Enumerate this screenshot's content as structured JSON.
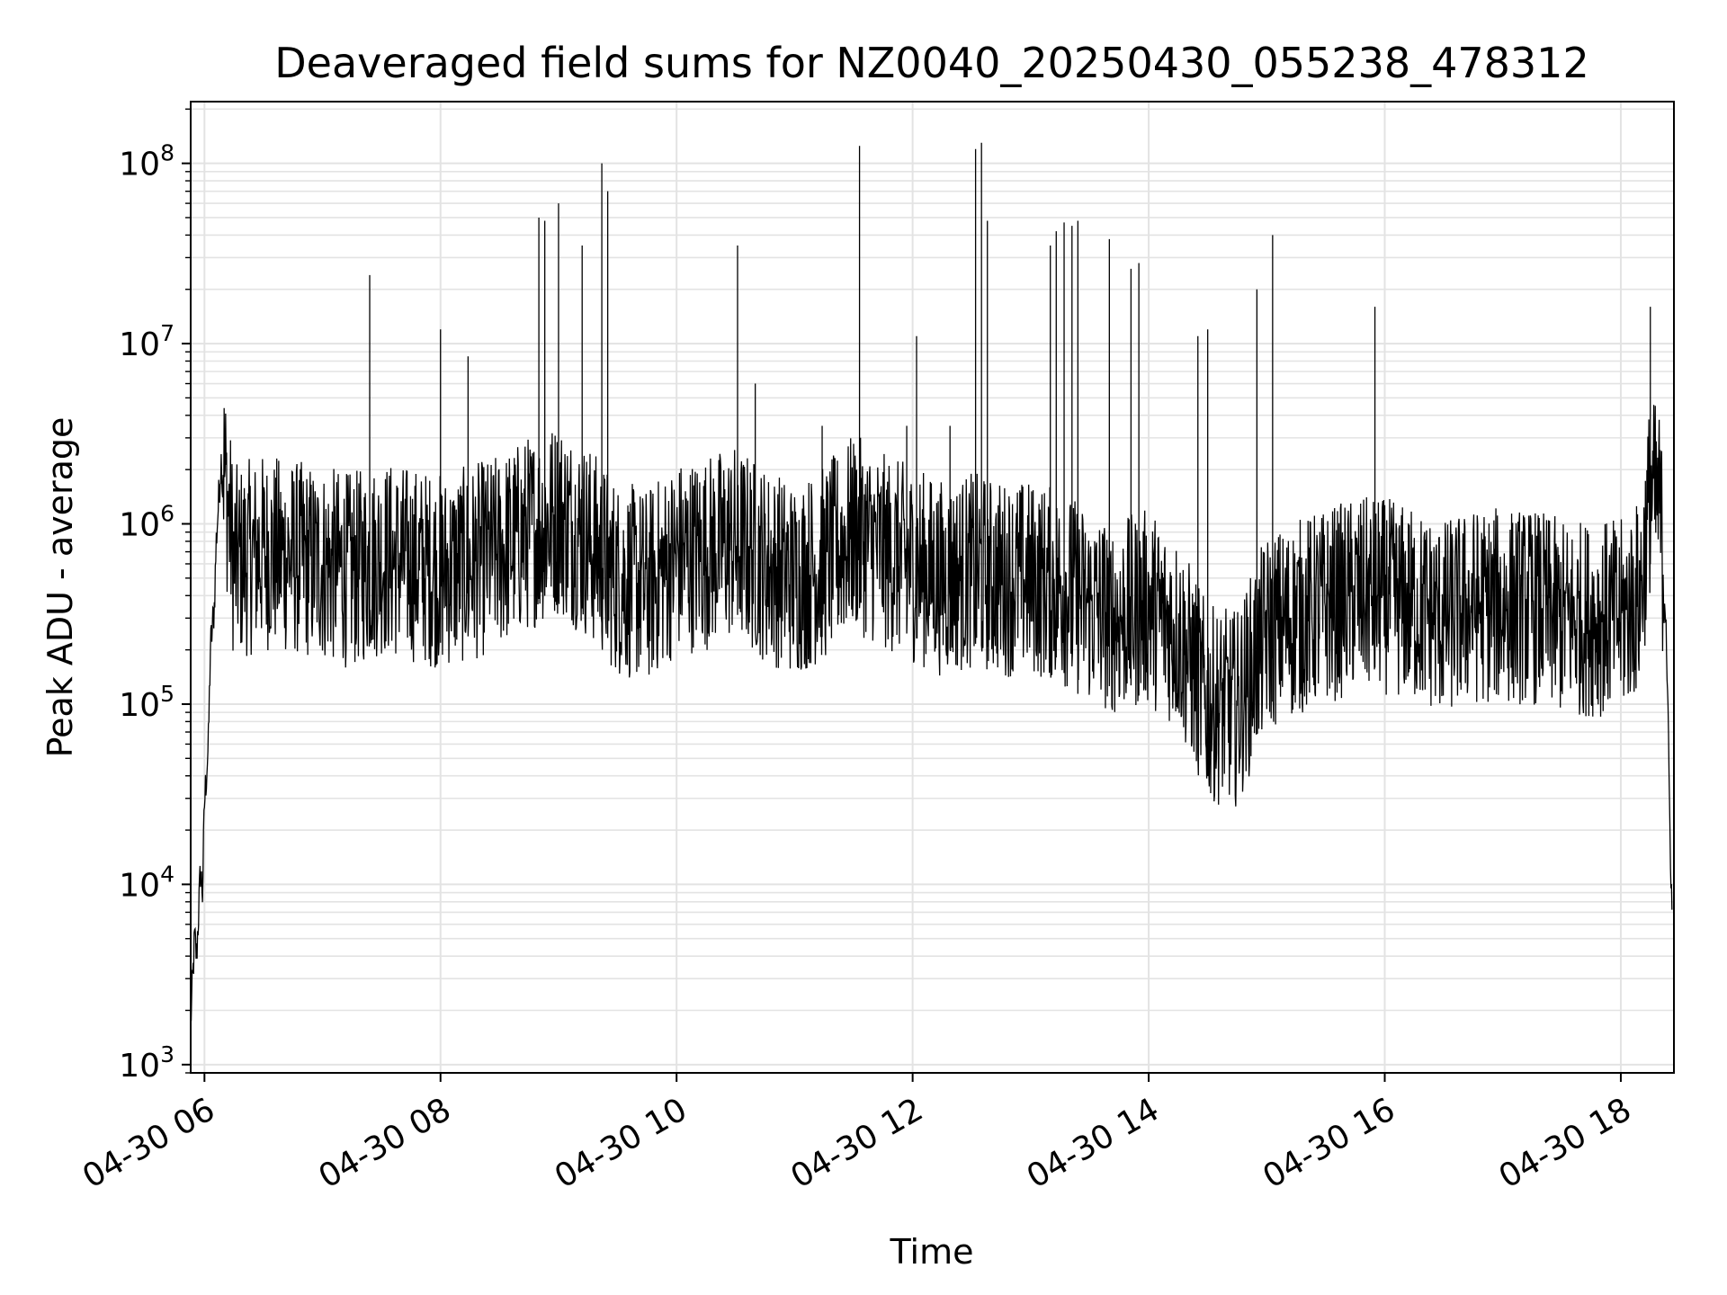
{
  "chart_data": {
    "type": "line",
    "title": "Deaveraged field sums for NZ0040_20250430_055238_478312",
    "xlabel": "Time",
    "ylabel": "Peak ADU - average",
    "yscale": "log",
    "ylim": [
      900,
      220000000
    ],
    "xlim": [
      "04-30 05:53",
      "04-30 18:27"
    ],
    "grid": true,
    "grid_minor": true,
    "line_color": "#000000",
    "grid_color": "#e3e3e3",
    "xticks": [
      {
        "t": "04-30 06:00",
        "label": "04-30 06"
      },
      {
        "t": "04-30 08:00",
        "label": "04-30 08"
      },
      {
        "t": "04-30 10:00",
        "label": "04-30 10"
      },
      {
        "t": "04-30 12:00",
        "label": "04-30 12"
      },
      {
        "t": "04-30 14:00",
        "label": "04-30 14"
      },
      {
        "t": "04-30 16:00",
        "label": "04-30 16"
      },
      {
        "t": "04-30 18:00",
        "label": "04-30 18"
      }
    ],
    "yticks": [
      {
        "value": 1000,
        "base": "10",
        "exp": "3"
      },
      {
        "value": 10000,
        "base": "10",
        "exp": "4"
      },
      {
        "value": 100000,
        "base": "10",
        "exp": "5"
      },
      {
        "value": 1000000,
        "base": "10",
        "exp": "6"
      },
      {
        "value": 10000000,
        "base": "10",
        "exp": "7"
      },
      {
        "value": 100000000,
        "base": "10",
        "exp": "8"
      }
    ],
    "series": [
      {
        "values": [
          [
            "04-30 05:53",
            1700
          ],
          [
            "04-30 05:55",
            5000
          ],
          [
            "04-30 05:56",
            4000
          ],
          [
            "04-30 05:58",
            12000
          ],
          [
            "04-30 05:59",
            9000
          ],
          [
            "04-30 06:00",
            28000
          ],
          [
            "04-30 06:02",
            60000
          ],
          [
            "04-30 06:03",
            200000
          ],
          [
            "04-30 06:05",
            350000
          ],
          [
            "04-30 06:06",
            800000
          ],
          [
            "04-30 06:08",
            1900000
          ],
          [
            "04-30 06:09",
            2600000
          ],
          [
            "04-30 06:15",
            600000
          ],
          [
            "04-30 06:30",
            700000
          ],
          [
            "04-30 06:45",
            650000
          ],
          [
            "04-30 07:00",
            600000
          ],
          [
            "04-30 07:15",
            550000
          ],
          [
            "04-30 07:30",
            650000
          ],
          [
            "04-30 07:45",
            600000
          ],
          [
            "04-30 08:00",
            550000
          ],
          [
            "04-30 08:15",
            600000
          ],
          [
            "04-30 08:30",
            700000
          ],
          [
            "04-30 08:45",
            900000
          ],
          [
            "04-30 09:00",
            1100000
          ],
          [
            "04-30 09:15",
            800000
          ],
          [
            "04-30 09:30",
            500000
          ],
          [
            "04-30 09:45",
            450000
          ],
          [
            "04-30 10:00",
            650000
          ],
          [
            "04-30 10:15",
            700000
          ],
          [
            "04-30 10:30",
            800000
          ],
          [
            "04-30 10:45",
            600000
          ],
          [
            "04-30 11:00",
            500000
          ],
          [
            "04-30 11:15",
            600000
          ],
          [
            "04-30 11:30",
            900000
          ],
          [
            "04-30 11:45",
            700000
          ],
          [
            "04-30 12:00",
            600000
          ],
          [
            "04-30 12:15",
            500000
          ],
          [
            "04-30 12:30",
            550000
          ],
          [
            "04-30 12:45",
            500000
          ],
          [
            "04-30 13:00",
            500000
          ],
          [
            "04-30 13:15",
            450000
          ],
          [
            "04-30 13:30",
            350000
          ],
          [
            "04-30 13:45",
            300000
          ],
          [
            "04-30 14:00",
            350000
          ],
          [
            "04-30 14:15",
            250000
          ],
          [
            "04-30 14:30",
            100000
          ],
          [
            "04-30 14:45",
            95000
          ],
          [
            "04-30 15:00",
            250000
          ],
          [
            "04-30 15:15",
            300000
          ],
          [
            "04-30 15:30",
            350000
          ],
          [
            "04-30 15:45",
            400000
          ],
          [
            "04-30 16:00",
            400000
          ],
          [
            "04-30 16:15",
            350000
          ],
          [
            "04-30 16:30",
            300000
          ],
          [
            "04-30 16:45",
            350000
          ],
          [
            "04-30 17:00",
            350000
          ],
          [
            "04-30 17:15",
            350000
          ],
          [
            "04-30 17:30",
            300000
          ],
          [
            "04-30 17:45",
            300000
          ],
          [
            "04-30 18:00",
            300000
          ],
          [
            "04-30 18:10",
            400000
          ],
          [
            "04-30 18:15",
            1500000
          ],
          [
            "04-30 18:20",
            1200000
          ],
          [
            "04-30 18:23",
            300000
          ],
          [
            "04-30 18:25",
            20000
          ],
          [
            "04-30 18:26",
            7000
          ]
        ],
        "spikes": [
          [
            "04-30 07:24",
            24000000
          ],
          [
            "04-30 08:00",
            12000000
          ],
          [
            "04-30 08:14",
            8500000
          ],
          [
            "04-30 08:50",
            50000000
          ],
          [
            "04-30 08:53",
            48000000
          ],
          [
            "04-30 09:00",
            60000000
          ],
          [
            "04-30 09:12",
            35000000
          ],
          [
            "04-30 09:22",
            100000000
          ],
          [
            "04-30 09:25",
            70000000
          ],
          [
            "04-30 10:31",
            35000000
          ],
          [
            "04-30 10:40",
            6000000
          ],
          [
            "04-30 11:14",
            3500000
          ],
          [
            "04-30 11:33",
            125000000
          ],
          [
            "04-30 11:57",
            3500000
          ],
          [
            "04-30 12:02",
            11000000
          ],
          [
            "04-30 12:19",
            3500000
          ],
          [
            "04-30 12:32",
            120000000
          ],
          [
            "04-30 12:35",
            130000000
          ],
          [
            "04-30 12:38",
            48000000
          ],
          [
            "04-30 13:10",
            35000000
          ],
          [
            "04-30 13:13",
            42000000
          ],
          [
            "04-30 13:17",
            47000000
          ],
          [
            "04-30 13:21",
            45000000
          ],
          [
            "04-30 13:24",
            48000000
          ],
          [
            "04-30 13:40",
            38000000
          ],
          [
            "04-30 13:51",
            26000000
          ],
          [
            "04-30 13:55",
            28000000
          ],
          [
            "04-30 14:25",
            11000000
          ],
          [
            "04-30 14:30",
            12000000
          ],
          [
            "04-30 14:55",
            20000000
          ],
          [
            "04-30 15:03",
            40000000
          ],
          [
            "04-30 15:55",
            16000000
          ],
          [
            "04-30 18:15",
            16000000
          ]
        ]
      }
    ]
  }
}
